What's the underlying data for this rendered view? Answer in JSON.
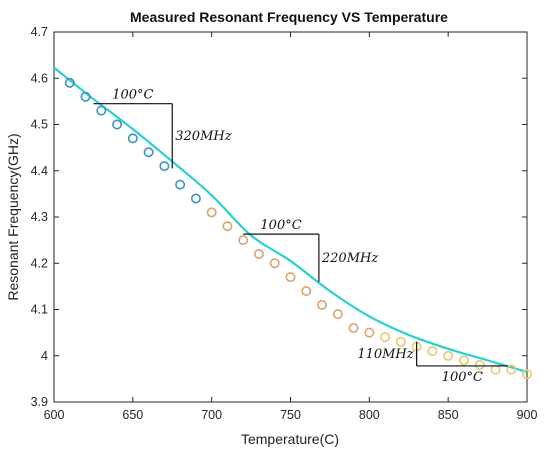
{
  "chart_data": {
    "type": "line",
    "title": "Measured Resonant Frequency VS Temperature",
    "xlabel": "Temperature(C)",
    "ylabel": "Resonant Frequency(GHz)",
    "xlim": [
      600,
      900
    ],
    "ylim": [
      3.9,
      4.7
    ],
    "x_ticks": [
      "600",
      "650",
      "700",
      "750",
      "800",
      "850",
      "900"
    ],
    "y_ticks": [
      "3.9",
      "4",
      "4.1",
      "4.2",
      "4.3",
      "4.4",
      "4.5",
      "4.6",
      "4.7"
    ],
    "grid": false,
    "series": [
      {
        "style": "line",
        "color": "#29d0d0",
        "x": [
          600,
          625,
          650,
          675,
          700,
          725,
          750,
          775,
          800,
          825,
          850,
          875,
          900
        ],
        "y": [
          4.623,
          4.555,
          4.49,
          4.42,
          4.347,
          4.26,
          4.205,
          4.14,
          4.085,
          4.045,
          4.015,
          3.99,
          3.965
        ]
      },
      {
        "style": "markers",
        "x": [
          610,
          620,
          630,
          640,
          650,
          660,
          670,
          680,
          690,
          700,
          710,
          720,
          730,
          740,
          750,
          760,
          770,
          780,
          790,
          800,
          810,
          820,
          830,
          840,
          850,
          860,
          870,
          880,
          890,
          900
        ],
        "y": [
          4.59,
          4.56,
          4.53,
          4.5,
          4.47,
          4.44,
          4.41,
          4.37,
          4.34,
          4.31,
          4.28,
          4.25,
          4.22,
          4.2,
          4.17,
          4.14,
          4.11,
          4.09,
          4.06,
          4.05,
          4.04,
          4.03,
          4.02,
          4.01,
          4.0,
          3.99,
          3.98,
          3.97,
          3.97,
          3.96
        ],
        "marker_colors": [
          "#3a92c4",
          "#3a92c4",
          "#3a92c4",
          "#3a92c4",
          "#3a92c4",
          "#3a92c4",
          "#3a92c4",
          "#3a92c4",
          "#3a92c4",
          "#d9a36a",
          "#d9a36a",
          "#d9a36a",
          "#d9a36a",
          "#d9a36a",
          "#d9a36a",
          "#d9a36a",
          "#d9a36a",
          "#d9a36a",
          "#d9a36a",
          "#d9a36a",
          "#e7c86a",
          "#e7c86a",
          "#e7c86a",
          "#e7c86a",
          "#e7c86a",
          "#e7c86a",
          "#e7c86a",
          "#e7c86a",
          "#e7c86a",
          "#e7c86a"
        ]
      }
    ],
    "annotations": [
      {
        "type": "slope-triangle",
        "x1": 625,
        "x2": 675,
        "y_top": 4.545,
        "y_bottom": 4.405,
        "horizontal_label": "100°C",
        "vertical_label": "320MHz",
        "vertical_label_side": "right",
        "horizontal_label_side": "above"
      },
      {
        "type": "slope-triangle",
        "x1": 720,
        "x2": 768,
        "y_top": 4.263,
        "y_bottom": 4.16,
        "horizontal_label": "100°C",
        "vertical_label": "220MHz",
        "vertical_label_side": "right",
        "horizontal_label_side": "above"
      },
      {
        "type": "slope-triangle-inverted",
        "x1": 830,
        "x2": 888,
        "y_top": 4.03,
        "y_bottom": 3.978,
        "horizontal_label": "100°C",
        "vertical_label": "110MHz",
        "vertical_label_side": "left",
        "horizontal_label_side": "below"
      }
    ],
    "colors": {
      "axes": "#262626",
      "line": "#29d0d0",
      "annotation": "#111111"
    }
  }
}
